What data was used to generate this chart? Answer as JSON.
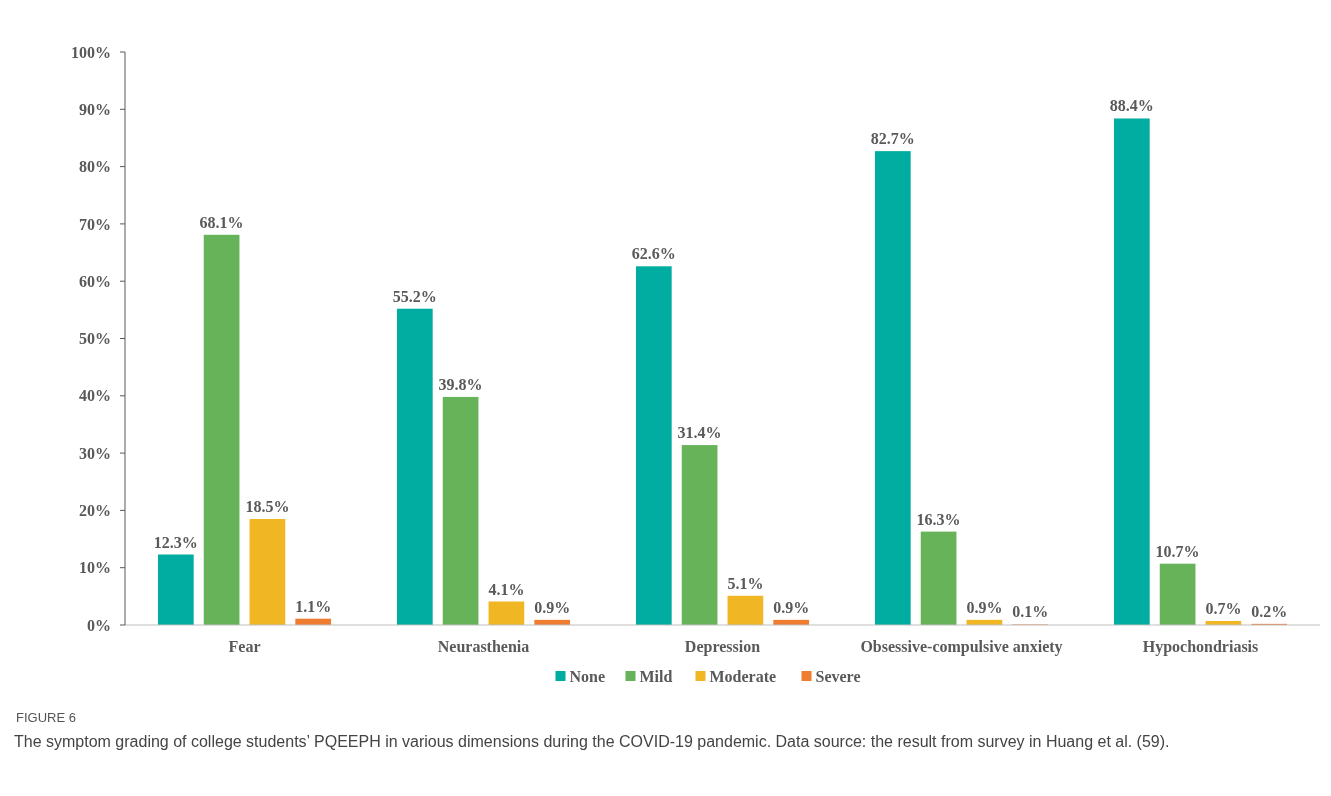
{
  "chart_data": {
    "type": "bar",
    "categories": [
      "Fear",
      "Neurasthenia",
      "Depression",
      "Obsessive-compulsive anxiety",
      "Hypochondriasis"
    ],
    "series": [
      {
        "name": "None",
        "color": "#00ada0",
        "values": [
          12.3,
          55.2,
          62.6,
          82.7,
          88.4
        ],
        "value_labels": [
          "12.3%",
          "55.2%",
          "62.6%",
          "82.7%",
          "88.4%"
        ]
      },
      {
        "name": "Mild",
        "color": "#66b35a",
        "values": [
          68.1,
          39.8,
          31.4,
          16.3,
          10.7
        ],
        "value_labels": [
          "68.1%",
          "39.8%",
          "31.4%",
          "16.3%",
          "10.7%"
        ]
      },
      {
        "name": "Moderate",
        "color": "#f0b623",
        "values": [
          18.5,
          4.1,
          5.1,
          0.9,
          0.7
        ],
        "value_labels": [
          "18.5%",
          "4.1%",
          "5.1%",
          "0.9%",
          "0.7%"
        ]
      },
      {
        "name": "Severe",
        "color": "#ef7d31",
        "values": [
          1.1,
          0.9,
          0.9,
          0.1,
          0.2
        ],
        "value_labels": [
          "1.1%",
          "0.9%",
          "0.9%",
          "0.1%",
          "0.2%"
        ]
      }
    ],
    "ylim": [
      0,
      100
    ],
    "yticks": [
      {
        "value": 0,
        "label": "0%"
      },
      {
        "value": 10,
        "label": "10%"
      },
      {
        "value": 20,
        "label": "20%"
      },
      {
        "value": 30,
        "label": "30%"
      },
      {
        "value": 40,
        "label": "40%"
      },
      {
        "value": 50,
        "label": "50%"
      },
      {
        "value": 60,
        "label": "60%"
      },
      {
        "value": 70,
        "label": "70%"
      },
      {
        "value": 80,
        "label": "80%"
      },
      {
        "value": 90,
        "label": "90%"
      },
      {
        "value": 100,
        "label": "100%"
      }
    ],
    "grid": false,
    "legend": "bottom",
    "annotations": [
      "FIGURE 6",
      "The symptom grading of college students’ PQEEPH in various dimensions during the COVID-19 pandemic. Data source: the result from survey in Huang et al. (59)."
    ]
  }
}
